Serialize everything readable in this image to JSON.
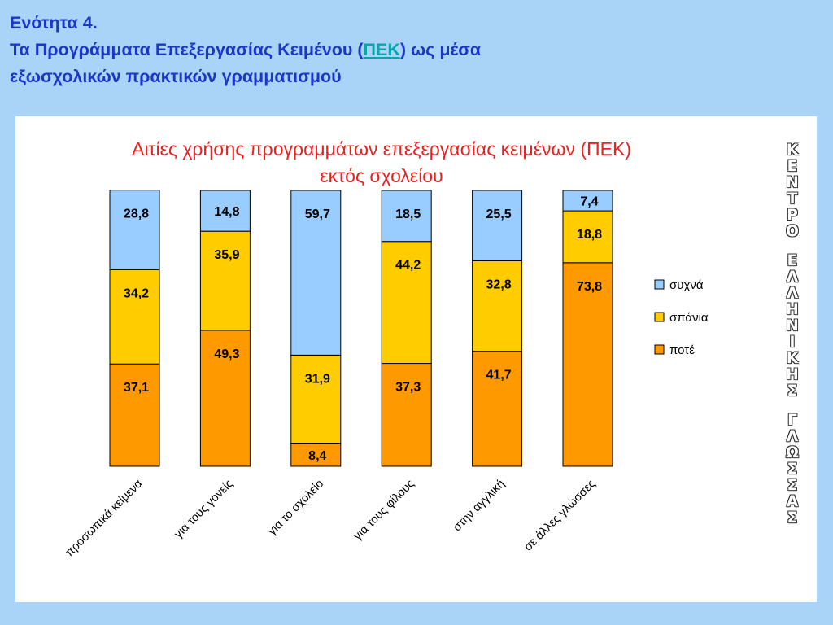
{
  "slide": {
    "heading_line1": "Ενότητα 4.",
    "heading_line2_before": "Τα Προγράμματα Επεξεργασίας Κειμένου (",
    "heading_line2_abbr": "ΠΕΚ",
    "heading_line2_after": ") ως μέσα",
    "heading_line3": "εξωσχολικών πρακτικών γραμματισμού"
  },
  "side_text": "ΚΕΝΤΡΟ ΕΛΛΗΝΙΚΗΣ ΓΛΩΣΣΑΣ",
  "chart_data": {
    "type": "bar",
    "stacked": true,
    "title": "Αιτίες χρήσης προγραμμάτων επεξεργασίας κειμένων (ΠΕΚ) εκτός σχολείου",
    "categories": [
      "προσωπικά κείμενα",
      "για τους γονείς",
      "για το σχολείο",
      "για τους φίλους",
      "στην αγγλική",
      "σε άλλες γλώσσες"
    ],
    "series": [
      {
        "name": "ποτέ",
        "color": "#ff9900",
        "values": [
          37.1,
          49.3,
          8.4,
          37.3,
          41.7,
          73.8
        ]
      },
      {
        "name": "σπάνια",
        "color": "#ffcc00",
        "values": [
          34.2,
          35.9,
          31.9,
          44.2,
          32.8,
          18.8
        ]
      },
      {
        "name": "συχνά",
        "color": "#99ccff",
        "values": [
          28.8,
          14.8,
          59.7,
          18.5,
          25.5,
          7.4
        ]
      }
    ],
    "legend_order": [
      "συχνά",
      "σπάνια",
      "ποτέ"
    ],
    "legend": "right",
    "ylim": [
      0,
      100
    ]
  }
}
